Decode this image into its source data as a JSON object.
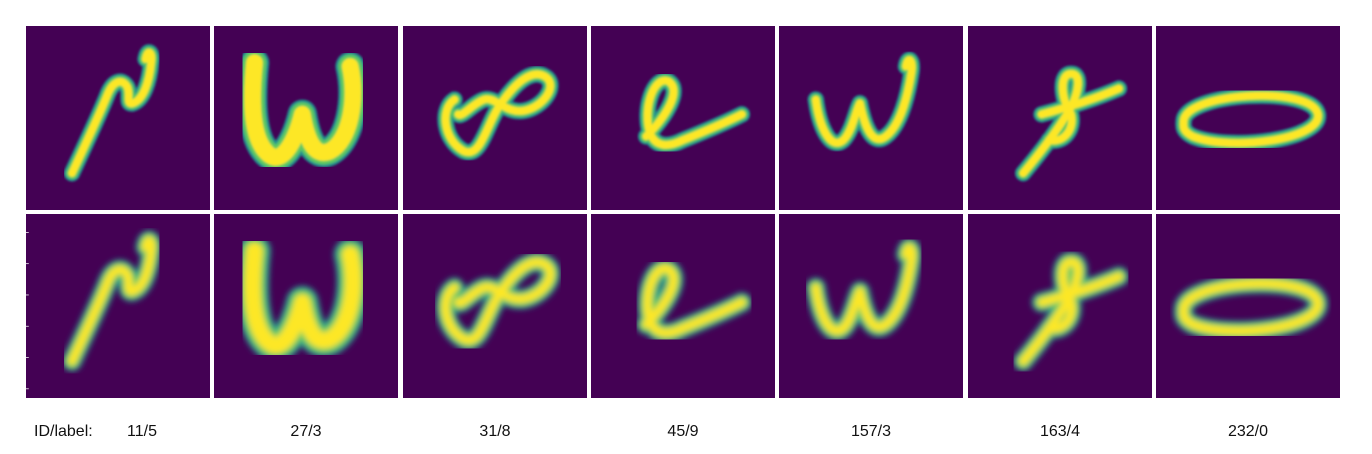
{
  "caption_prefix": "ID/label:",
  "colors": {
    "background": "#440154",
    "stroke_core": "#fde725",
    "stroke_edge": "#21918c",
    "stroke_mid": "#5ec962"
  },
  "samples": [
    {
      "id_label": "11/5",
      "glyph": "squiggle"
    },
    {
      "id_label": "27/3",
      "glyph": "w-bold"
    },
    {
      "id_label": "31/8",
      "glyph": "infinity-loop"
    },
    {
      "id_label": "45/9",
      "glyph": "cursive-e"
    },
    {
      "id_label": "157/3",
      "glyph": "w-cursive"
    },
    {
      "id_label": "163/4",
      "glyph": "cursive-f"
    },
    {
      "id_label": "232/0",
      "glyph": "oval"
    }
  ],
  "rows": [
    "original",
    "reconstruction"
  ]
}
